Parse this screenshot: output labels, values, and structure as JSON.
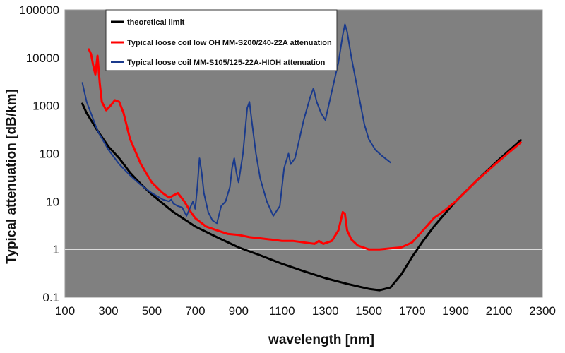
{
  "chart_data": {
    "type": "line",
    "title": "",
    "xlabel": "wavelength [nm]",
    "ylabel": "Typical attenuation [dB/km]",
    "x_scale": "linear",
    "y_scale": "log",
    "xlim": [
      100,
      2300
    ],
    "ylim": [
      0.1,
      100000
    ],
    "x_ticks": [
      100,
      300,
      500,
      700,
      900,
      1100,
      1300,
      1500,
      1700,
      1900,
      2100,
      2300
    ],
    "y_ticks": [
      0.1,
      1,
      10,
      100,
      1000,
      10000,
      100000
    ],
    "x_tick_labels": [
      "100",
      "300",
      "500",
      "700",
      "900",
      "1100",
      "1300",
      "1500",
      "1700",
      "1900",
      "2100",
      "2300"
    ],
    "y_tick_labels": [
      "0.1",
      "1",
      "10",
      "100",
      "1000",
      "10000",
      "100000"
    ],
    "reference_line": {
      "y": 1,
      "color": "#e8e8e8"
    },
    "grid": false,
    "legend_position": "top-center",
    "colors": {
      "plot_background": "#808080",
      "theoretical": "#000000",
      "low_oh": "#ff0000",
      "high_oh": "#1a3a8c"
    },
    "series": [
      {
        "name": "theoretical limit",
        "color": "#000000",
        "x": [
          180,
          200,
          250,
          300,
          350,
          400,
          450,
          500,
          600,
          700,
          800,
          900,
          1000,
          1100,
          1200,
          1300,
          1400,
          1500,
          1550,
          1600,
          1650,
          1700,
          1750,
          1800,
          1850,
          1900,
          2000,
          2100,
          2200
        ],
        "y": [
          1100,
          700,
          300,
          140,
          80,
          40,
          23,
          14,
          6,
          3,
          1.8,
          1.1,
          0.75,
          0.5,
          0.35,
          0.25,
          0.19,
          0.15,
          0.14,
          0.16,
          0.3,
          0.7,
          1.5,
          3,
          5.5,
          10,
          28,
          75,
          190
        ]
      },
      {
        "name": "Typical loose coil low OH MM-S200/240-22A attenuation",
        "color": "#ff0000",
        "x": [
          210,
          220,
          230,
          240,
          250,
          260,
          270,
          290,
          310,
          330,
          350,
          370,
          400,
          450,
          500,
          550,
          580,
          620,
          650,
          680,
          700,
          750,
          800,
          850,
          900,
          950,
          1000,
          1050,
          1100,
          1150,
          1200,
          1250,
          1270,
          1290,
          1330,
          1360,
          1380,
          1390,
          1400,
          1420,
          1450,
          1500,
          1550,
          1600,
          1650,
          1700,
          1750,
          1800,
          1850,
          1900,
          2000,
          2100,
          2200
        ],
        "y": [
          15000,
          12000,
          7000,
          4500,
          11000,
          3000,
          1200,
          800,
          1000,
          1300,
          1200,
          700,
          200,
          60,
          25,
          15,
          12,
          15,
          10,
          6,
          4.5,
          3,
          2.5,
          2.1,
          2.0,
          1.8,
          1.7,
          1.6,
          1.5,
          1.5,
          1.4,
          1.3,
          1.5,
          1.3,
          1.5,
          2.5,
          6,
          5.5,
          2.5,
          1.6,
          1.2,
          1.0,
          1.0,
          1.05,
          1.1,
          1.4,
          2.5,
          4.5,
          6.5,
          10,
          28,
          70,
          170
        ]
      },
      {
        "name": "Typical loose coil MM-S105/125-22A-HIOH attenuation",
        "color": "#1a3a8c",
        "x": [
          180,
          200,
          250,
          300,
          350,
          400,
          450,
          500,
          550,
          580,
          590,
          600,
          620,
          640,
          660,
          680,
          690,
          700,
          710,
          720,
          730,
          740,
          760,
          780,
          800,
          820,
          840,
          860,
          870,
          880,
          890,
          900,
          920,
          940,
          950,
          960,
          980,
          1000,
          1030,
          1060,
          1090,
          1110,
          1130,
          1140,
          1160,
          1180,
          1200,
          1230,
          1245,
          1260,
          1280,
          1300,
          1330,
          1360,
          1380,
          1390,
          1400,
          1420,
          1450,
          1480,
          1500,
          1530,
          1560,
          1600
        ],
        "y": [
          3000,
          1200,
          300,
          120,
          60,
          35,
          22,
          15,
          11,
          10,
          11,
          9,
          8,
          7.5,
          5,
          8,
          10,
          7,
          20,
          80,
          40,
          15,
          6,
          4,
          3.5,
          8,
          10,
          20,
          50,
          80,
          40,
          25,
          100,
          900,
          1200,
          500,
          100,
          30,
          10,
          5,
          8,
          50,
          100,
          60,
          80,
          200,
          500,
          1500,
          2300,
          1200,
          700,
          500,
          2000,
          8000,
          30000,
          50000,
          35000,
          10000,
          2000,
          400,
          200,
          120,
          90,
          65
        ]
      }
    ]
  }
}
